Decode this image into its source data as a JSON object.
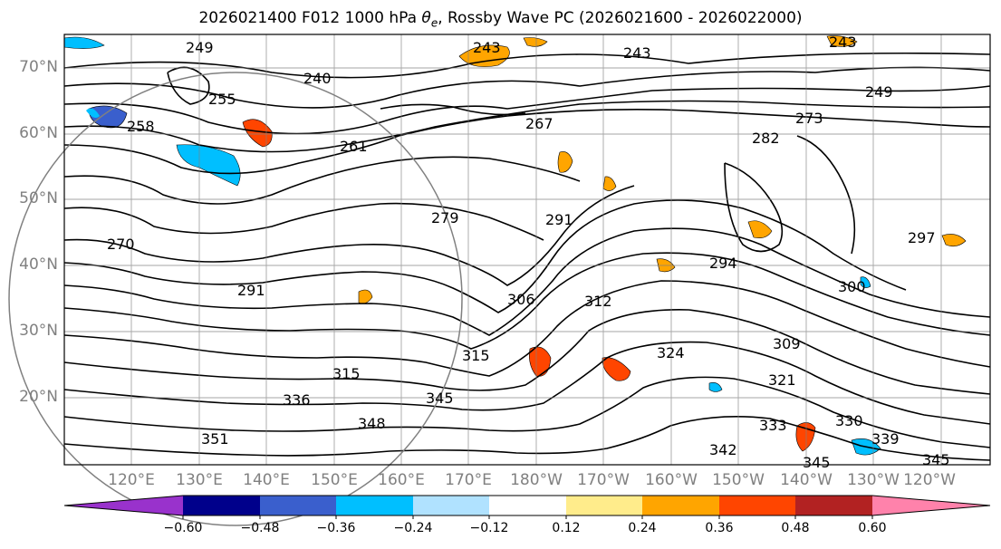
{
  "title_main": "2026021400 F012 1000 hPa ",
  "title_var": "θ",
  "title_sub": "e",
  "title_rest": ", Rossby Wave PC (2026021600 - 2026022000)",
  "lat_labels": [
    "70°N",
    "60°N",
    "50°N",
    "40°N",
    "30°N",
    "20°N"
  ],
  "lon_labels": [
    "120°E",
    "130°E",
    "140°E",
    "150°E",
    "160°E",
    "170°E",
    "180°W",
    "170°W",
    "160°W",
    "150°W",
    "140°W",
    "130°W",
    "120°W"
  ],
  "contour_labels": [
    "243",
    "249",
    "240",
    "243",
    "243",
    "249",
    "258",
    "255",
    "261",
    "267",
    "273",
    "282",
    "270",
    "279",
    "291",
    "294",
    "300",
    "297",
    "291",
    "306",
    "315",
    "312",
    "309",
    "324",
    "321",
    "315",
    "336",
    "345",
    "348",
    "351",
    "333",
    "330",
    "339",
    "342",
    "345",
    "345"
  ],
  "colorbar": {
    "tick_labels": [
      "−0.60",
      "−0.48",
      "−0.36",
      "−0.24",
      "−0.12",
      "0.12",
      "0.24",
      "0.36",
      "0.48",
      "0.60"
    ],
    "colors": [
      "#9932CC",
      "#00008B",
      "#3A5FCD",
      "#00BFFF",
      "#B0E2FF",
      "#FFFFFF",
      "#FFEC8B",
      "#FFA500",
      "#FF4500",
      "#B22222",
      "#FF82AB"
    ],
    "outline": "#000000"
  }
}
